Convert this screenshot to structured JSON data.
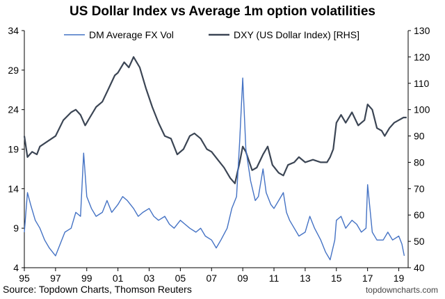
{
  "header": {
    "title": "US Dollar Index vs Average 1m option volatilities"
  },
  "footer": {
    "source": "Source: Topdown Charts, Thomson Reuters",
    "credit": "topdowncharts.com"
  },
  "colors": {
    "vol": "#4472C4",
    "dxy": "#3B4554",
    "axis": "#000000"
  },
  "chart_data": {
    "type": "line",
    "title": "US Dollar Index vs Average 1m option volatilities",
    "x_ticks": [
      "95",
      "97",
      "99",
      "01",
      "03",
      "05",
      "07",
      "09",
      "11",
      "13",
      "15",
      "17",
      "19"
    ],
    "xlim": [
      1995,
      2019.6
    ],
    "y_left": {
      "ticks": [
        "4",
        "9",
        "14",
        "19",
        "24",
        "29",
        "34"
      ],
      "ylim": [
        4,
        34
      ]
    },
    "y_right": {
      "ticks": [
        "40",
        "50",
        "60",
        "70",
        "80",
        "90",
        "100",
        "110",
        "120",
        "130"
      ],
      "ylim": [
        40,
        130
      ]
    },
    "legend": [
      "DM Average FX Vol",
      "DXY (US Dollar Index) [RHS]"
    ],
    "series": [
      {
        "name": "DM Average FX Vol",
        "axis": "left",
        "x": [
          1995.0,
          1995.2,
          1995.4,
          1995.7,
          1996.0,
          1996.3,
          1996.6,
          1997.0,
          1997.3,
          1997.6,
          1998.0,
          1998.3,
          1998.6,
          1998.8,
          1999.0,
          1999.3,
          1999.6,
          2000.0,
          2000.3,
          2000.6,
          2001.0,
          2001.3,
          2001.6,
          2002.0,
          2002.3,
          2002.6,
          2003.0,
          2003.3,
          2003.6,
          2004.0,
          2004.3,
          2004.6,
          2005.0,
          2005.3,
          2005.6,
          2006.0,
          2006.3,
          2006.6,
          2007.0,
          2007.3,
          2007.6,
          2008.0,
          2008.3,
          2008.6,
          2008.8,
          2009.0,
          2009.2,
          2009.5,
          2009.8,
          2010.0,
          2010.3,
          2010.5,
          2010.8,
          2011.0,
          2011.3,
          2011.6,
          2011.8,
          2012.0,
          2012.3,
          2012.6,
          2013.0,
          2013.3,
          2013.6,
          2014.0,
          2014.3,
          2014.6,
          2014.9,
          2015.0,
          2015.3,
          2015.6,
          2016.0,
          2016.3,
          2016.6,
          2016.9,
          2017.0,
          2017.3,
          2017.6,
          2018.0,
          2018.3,
          2018.6,
          2019.0,
          2019.2,
          2019.35
        ],
        "values": [
          8.5,
          13.5,
          12.0,
          10.0,
          9.0,
          7.5,
          6.5,
          5.5,
          7.0,
          8.5,
          9.0,
          11.0,
          10.5,
          18.5,
          13.0,
          11.5,
          10.5,
          11.0,
          12.5,
          11.0,
          12.0,
          13.0,
          12.5,
          11.5,
          10.5,
          11.0,
          11.5,
          10.5,
          10.0,
          10.5,
          9.5,
          9.0,
          10.0,
          9.5,
          9.0,
          8.5,
          9.0,
          8.0,
          7.5,
          6.5,
          7.5,
          9.0,
          11.5,
          13.0,
          20.0,
          28.0,
          19.0,
          15.0,
          12.5,
          13.0,
          16.5,
          13.5,
          12.0,
          11.5,
          12.5,
          13.5,
          11.0,
          10.0,
          9.0,
          8.0,
          8.5,
          10.5,
          9.0,
          7.5,
          6.0,
          5.0,
          7.5,
          10.0,
          10.5,
          9.0,
          10.0,
          9.5,
          8.5,
          9.0,
          14.5,
          8.5,
          7.5,
          7.5,
          8.5,
          7.5,
          8.0,
          7.0,
          5.5
        ]
      },
      {
        "name": "DXY (US Dollar Index) [RHS]",
        "axis": "right",
        "x": [
          1995.0,
          1995.2,
          1995.5,
          1995.8,
          1996.0,
          1996.5,
          1997.0,
          1997.5,
          1998.0,
          1998.3,
          1998.6,
          1998.9,
          1999.2,
          1999.6,
          2000.0,
          2000.4,
          2000.8,
          2001.0,
          2001.4,
          2001.7,
          2002.0,
          2002.4,
          2002.8,
          2003.2,
          2003.6,
          2004.0,
          2004.4,
          2004.8,
          2005.2,
          2005.6,
          2005.9,
          2006.3,
          2006.7,
          2007.0,
          2007.4,
          2007.8,
          2008.2,
          2008.5,
          2008.8,
          2009.0,
          2009.2,
          2009.6,
          2009.9,
          2010.3,
          2010.6,
          2010.9,
          2011.3,
          2011.6,
          2011.9,
          2012.3,
          2012.6,
          2013.0,
          2013.5,
          2014.0,
          2014.4,
          2014.6,
          2014.8,
          2015.0,
          2015.3,
          2015.6,
          2016.0,
          2016.4,
          2016.8,
          2017.0,
          2017.3,
          2017.6,
          2017.9,
          2018.1,
          2018.4,
          2018.7,
          2019.0,
          2019.3,
          2019.5
        ],
        "values": [
          90,
          82,
          84,
          83,
          86,
          88,
          90,
          96,
          99,
          100,
          98,
          94,
          97,
          101,
          103,
          108,
          113,
          114,
          118,
          116,
          120,
          116,
          108,
          101,
          95,
          90,
          89,
          83,
          85,
          90,
          91,
          89,
          85,
          84,
          81,
          78,
          74,
          72,
          80,
          86,
          84,
          77,
          78,
          83,
          86,
          79,
          76,
          75,
          79,
          80,
          82,
          80,
          81,
          80,
          80,
          82,
          85,
          95,
          98,
          95,
          99,
          94,
          96,
          102,
          100,
          93,
          92,
          90,
          93,
          95,
          96,
          97,
          97
        ]
      }
    ]
  }
}
